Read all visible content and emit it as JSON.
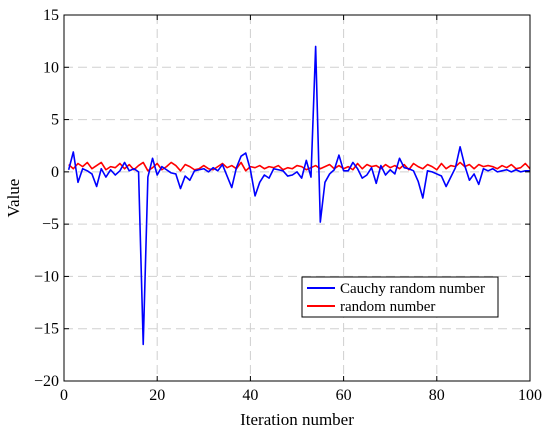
{
  "chart_data": {
    "type": "line",
    "title": "",
    "xlabel": "Iteration number",
    "ylabel": "Value",
    "xlim": [
      0,
      100
    ],
    "ylim": [
      -20,
      15
    ],
    "xticks": [
      0,
      20,
      40,
      60,
      80,
      100
    ],
    "yticks": [
      -20,
      -15,
      -10,
      -5,
      0,
      5,
      10,
      15
    ],
    "xtick_labels": [
      "0",
      "20",
      "40",
      "60",
      "80",
      "100"
    ],
    "ytick_labels": [
      "−20",
      "−15",
      "−10",
      "−5",
      "0",
      "5",
      "10",
      "15"
    ],
    "grid": true,
    "legend_position": "lower-right",
    "x": [
      1,
      2,
      3,
      4,
      5,
      6,
      7,
      8,
      9,
      10,
      11,
      12,
      13,
      14,
      15,
      16,
      17,
      18,
      19,
      20,
      21,
      22,
      23,
      24,
      25,
      26,
      27,
      28,
      29,
      30,
      31,
      32,
      33,
      34,
      35,
      36,
      37,
      38,
      39,
      40,
      41,
      42,
      43,
      44,
      45,
      46,
      47,
      48,
      49,
      50,
      51,
      52,
      53,
      54,
      55,
      56,
      57,
      58,
      59,
      60,
      61,
      62,
      63,
      64,
      65,
      66,
      67,
      68,
      69,
      70,
      71,
      72,
      73,
      74,
      75,
      76,
      77,
      78,
      79,
      80,
      81,
      82,
      83,
      84,
      85,
      86,
      87,
      88,
      89,
      90,
      91,
      92,
      93,
      94,
      95,
      96,
      97,
      98,
      99,
      100
    ],
    "series": [
      {
        "name": "Cauchy random number",
        "color": "#0000ff",
        "values": [
          0.2,
          1.9,
          -1.0,
          0.3,
          0.1,
          -0.2,
          -1.4,
          0.3,
          -0.5,
          0.2,
          -0.3,
          0.1,
          0.9,
          0.1,
          0.3,
          0.0,
          -16.5,
          -0.5,
          1.3,
          -0.3,
          0.5,
          0.2,
          -0.1,
          -0.2,
          -1.6,
          -0.4,
          -0.8,
          0.1,
          0.2,
          0.3,
          0.0,
          0.4,
          0.1,
          0.7,
          -0.4,
          -1.5,
          0.4,
          1.5,
          1.8,
          0.2,
          -2.3,
          -1.0,
          -0.3,
          -0.6,
          0.3,
          0.2,
          0.1,
          -0.4,
          -0.3,
          0.0,
          -0.6,
          1.1,
          -0.5,
          12.0,
          -4.8,
          -1.0,
          -0.2,
          0.2,
          1.6,
          0.1,
          0.1,
          0.9,
          0.3,
          -0.6,
          -0.3,
          0.4,
          -1.1,
          0.6,
          -0.3,
          0.2,
          -0.2,
          1.3,
          0.4,
          0.3,
          0.1,
          -0.9,
          -2.5,
          0.1,
          0.0,
          -0.2,
          -0.4,
          -1.4,
          -0.5,
          0.4,
          2.4,
          0.6,
          -0.8,
          -0.2,
          -1.2,
          0.3,
          0.1,
          0.3,
          0.0,
          0.1,
          0.2,
          0.0,
          0.2,
          0.0,
          0.1,
          0.1
        ]
      },
      {
        "name": "random number",
        "color": "#ff0000",
        "values": [
          0.7,
          0.3,
          0.8,
          0.5,
          0.9,
          0.3,
          0.6,
          0.9,
          0.2,
          0.5,
          0.4,
          0.8,
          0.3,
          0.7,
          0.2,
          0.6,
          0.9,
          0.1,
          0.4,
          0.8,
          0.2,
          0.5,
          0.9,
          0.6,
          0.1,
          0.7,
          0.5,
          0.2,
          0.3,
          0.6,
          0.3,
          0.2,
          0.5,
          0.8,
          0.4,
          0.6,
          0.3,
          0.9,
          0.1,
          0.5,
          0.4,
          0.6,
          0.3,
          0.5,
          0.4,
          0.6,
          0.2,
          0.4,
          0.3,
          0.6,
          0.5,
          0.2,
          0.4,
          0.6,
          0.3,
          0.5,
          0.7,
          0.3,
          0.6,
          0.3,
          0.5,
          0.2,
          0.8,
          0.3,
          0.7,
          0.5,
          0.6,
          0.3,
          0.7,
          0.4,
          0.6,
          0.3,
          0.7,
          0.2,
          0.8,
          0.5,
          0.3,
          0.7,
          0.5,
          0.2,
          0.8,
          0.3,
          0.6,
          0.5,
          0.9,
          0.5,
          0.7,
          0.3,
          0.7,
          0.5,
          0.6,
          0.5,
          0.3,
          0.6,
          0.4,
          0.7,
          0.3,
          0.4,
          0.8,
          0.3
        ]
      }
    ]
  }
}
